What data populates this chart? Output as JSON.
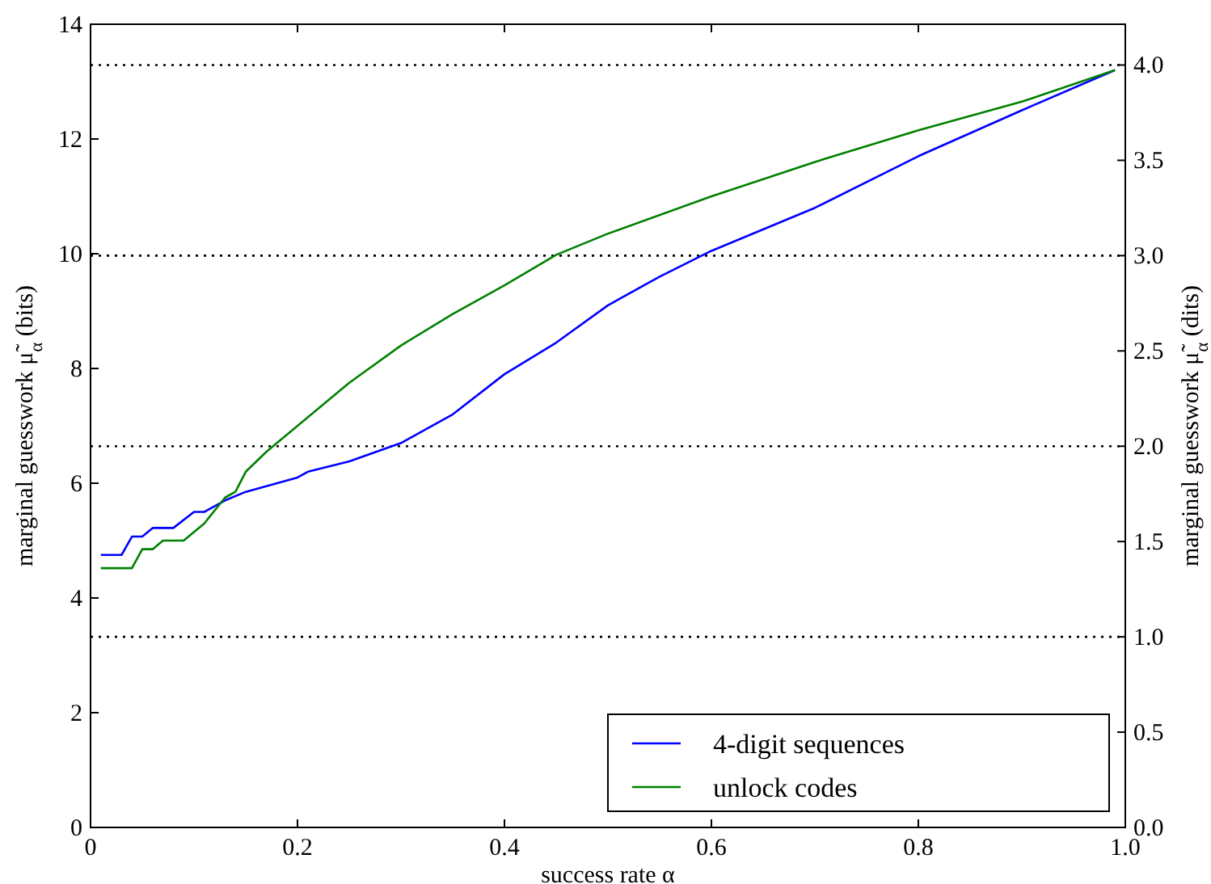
{
  "chart_data": {
    "type": "line",
    "xlabel": "success rate α",
    "ylabel": "marginal guesswork μ̃$_{α}$ (bits)",
    "y2label": "marginal guesswork μ̃$_{α}$ (dits)",
    "xlim": [
      0,
      1
    ],
    "xticks": [
      0,
      {
        "value": 0.2,
        "label": "0.2"
      },
      {
        "value": 0.4,
        "label": "0.4"
      },
      {
        "value": 0.6,
        "label": "0.6"
      },
      {
        "value": 0.8,
        "label": "0.8"
      },
      {
        "value": 1,
        "label": "1.0"
      }
    ],
    "ylim": [
      0,
      14
    ],
    "yticks": [
      0,
      2,
      4,
      6,
      8,
      10,
      12,
      14
    ],
    "y2lim": [
      0,
      4.214
    ],
    "y2ticks": [
      {
        "value": 0,
        "label": "0.0"
      },
      0.5,
      {
        "value": 1,
        "label": "1.0"
      },
      1.5,
      {
        "value": 2,
        "label": "2.0"
      },
      2.5,
      {
        "value": 3,
        "label": "3.0"
      },
      3.5,
      {
        "value": 4,
        "label": "4.0"
      }
    ],
    "ref_lines": [
      {
        "axis": "y2",
        "value": 1,
        "line_style": "dotted"
      },
      {
        "axis": "y2",
        "value": 2,
        "line_style": "dotted"
      },
      {
        "axis": "y2",
        "value": 3,
        "line_style": "dotted"
      },
      {
        "axis": "y2",
        "value": 4,
        "line_style": "dotted"
      }
    ],
    "legend": "bottom right",
    "series": [
      {
        "name": "4-digit sequences",
        "color": "#0000ff",
        "x": [
          0.01,
          0.03,
          0.04,
          0.05,
          0.06,
          0.08,
          0.1,
          0.11,
          0.13,
          0.15,
          0.2,
          0.21,
          0.25,
          0.3,
          0.32,
          0.35,
          0.4,
          0.45,
          0.5,
          0.55,
          0.6,
          0.7,
          0.8,
          0.9,
          0.99
        ],
        "values": [
          4.75,
          4.75,
          5.07,
          5.07,
          5.22,
          5.22,
          5.5,
          5.5,
          5.7,
          5.85,
          6.1,
          6.2,
          6.38,
          6.7,
          6.9,
          7.2,
          7.9,
          8.45,
          9.1,
          9.6,
          10.05,
          10.8,
          11.7,
          12.5,
          13.2
        ]
      },
      {
        "name": "unlock codes",
        "color": "#008000",
        "x": [
          0.01,
          0.04,
          0.05,
          0.06,
          0.07,
          0.09,
          0.11,
          0.13,
          0.14,
          0.15,
          0.17,
          0.2,
          0.25,
          0.3,
          0.35,
          0.4,
          0.45,
          0.5,
          0.6,
          0.7,
          0.8,
          0.9,
          0.99
        ],
        "values": [
          4.52,
          4.52,
          4.85,
          4.85,
          5.0,
          5.0,
          5.3,
          5.75,
          5.85,
          6.2,
          6.55,
          7.0,
          7.75,
          8.4,
          8.95,
          9.45,
          9.98,
          10.35,
          11.0,
          11.6,
          12.15,
          12.65,
          13.2
        ]
      }
    ]
  }
}
